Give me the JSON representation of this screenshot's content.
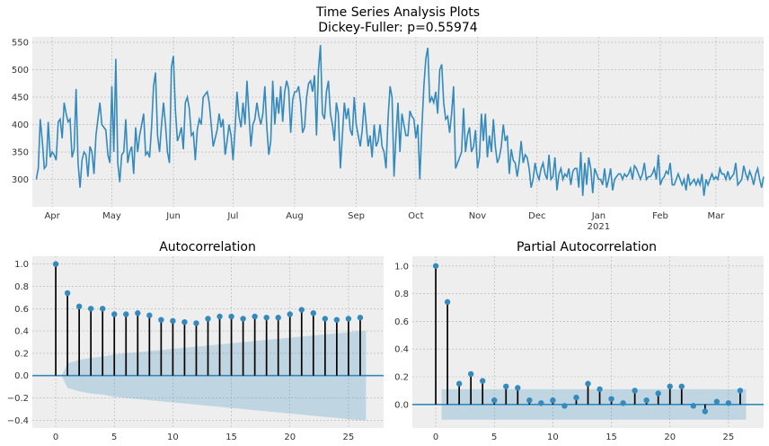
{
  "chart_data": [
    {
      "type": "line",
      "title": "Time Series Analysis Plots",
      "subtitle": "Dickey-Fuller: p=0.55974",
      "xlabel": "",
      "ylabel": "",
      "ylim": [
        250,
        560
      ],
      "yticks": [
        300,
        350,
        400,
        450,
        500,
        550
      ],
      "xticks": [
        {
          "day": 8,
          "label": "Apr",
          "sub": ""
        },
        {
          "day": 38,
          "label": "May",
          "sub": ""
        },
        {
          "day": 69,
          "label": "Jun",
          "sub": ""
        },
        {
          "day": 99,
          "label": "Jul",
          "sub": ""
        },
        {
          "day": 130,
          "label": "Aug",
          "sub": ""
        },
        {
          "day": 161,
          "label": "Sep",
          "sub": ""
        },
        {
          "day": 191,
          "label": "Oct",
          "sub": ""
        },
        {
          "day": 222,
          "label": "Nov",
          "sub": ""
        },
        {
          "day": 252,
          "label": "Dec",
          "sub": ""
        },
        {
          "day": 283,
          "label": "Jan",
          "sub": "2021"
        },
        {
          "day": 314,
          "label": "Feb",
          "sub": ""
        },
        {
          "day": 342,
          "label": "Mar",
          "sub": ""
        }
      ],
      "xlim": [
        -2,
        366
      ],
      "color": "#348ABD",
      "grid": true,
      "series": [
        {
          "values": [
            300,
            320,
            410,
            370,
            320,
            325,
            405,
            340,
            350,
            345,
            335,
            405,
            410,
            375,
            440,
            420,
            405,
            410,
            340,
            355,
            465,
            330,
            285,
            335,
            350,
            345,
            305,
            360,
            350,
            310,
            380,
            410,
            440,
            400,
            395,
            390,
            345,
            330,
            470,
            350,
            520,
            330,
            295,
            345,
            350,
            410,
            330,
            350,
            360,
            310,
            395,
            350,
            380,
            400,
            420,
            345,
            350,
            340,
            395,
            470,
            495,
            380,
            350,
            400,
            440,
            400,
            350,
            330,
            505,
            525,
            425,
            370,
            380,
            395,
            355,
            440,
            450,
            430,
            380,
            385,
            335,
            390,
            410,
            400,
            450,
            455,
            460,
            440,
            400,
            360,
            375,
            390,
            420,
            395,
            410,
            345,
            370,
            400,
            380,
            335,
            390,
            460,
            415,
            395,
            440,
            400,
            480,
            420,
            360,
            400,
            410,
            440,
            415,
            400,
            420,
            470,
            395,
            345,
            370,
            480,
            400,
            450,
            420,
            470,
            405,
            460,
            480,
            465,
            385,
            445,
            460,
            460,
            470,
            440,
            385,
            395,
            450,
            475,
            480,
            460,
            490,
            380,
            500,
            545,
            420,
            410,
            460,
            480,
            420,
            400,
            370,
            440,
            420,
            320,
            380,
            440,
            410,
            430,
            390,
            380,
            450,
            400,
            380,
            360,
            390,
            440,
            400,
            360,
            380,
            340,
            400,
            360,
            370,
            400,
            360,
            350,
            320,
            410,
            470,
            450,
            305,
            380,
            440,
            350,
            420,
            400,
            380,
            380,
            425,
            415,
            410,
            375,
            400,
            300,
            390,
            470,
            520,
            540,
            440,
            450,
            440,
            460,
            420,
            500,
            510,
            440,
            410,
            415,
            385,
            420,
            470,
            320,
            330,
            340,
            350,
            430,
            350,
            380,
            395,
            350,
            360,
            390,
            320,
            340,
            420,
            370,
            420,
            340,
            380,
            350,
            410,
            360,
            330,
            340,
            360,
            400,
            370,
            380,
            310,
            355,
            335,
            330,
            305,
            330,
            370,
            330,
            345,
            340,
            320,
            285,
            300,
            330,
            310,
            300,
            320,
            330,
            310,
            300,
            345,
            300,
            305,
            340,
            280,
            310,
            320,
            300,
            310,
            305,
            320,
            290,
            315,
            320,
            320,
            285,
            350,
            270,
            330,
            290,
            340,
            320,
            275,
            320,
            310,
            300,
            300,
            290,
            320,
            285,
            300,
            320,
            280,
            300,
            305,
            310,
            310,
            300,
            310,
            305,
            310,
            320,
            300,
            325,
            320,
            310,
            300,
            310,
            330,
            300,
            305,
            305,
            310,
            320,
            300,
            345,
            290,
            300,
            305,
            315,
            310,
            330,
            290,
            290,
            300,
            310,
            300,
            290,
            300,
            280,
            310,
            290,
            295,
            300,
            290,
            300,
            290,
            310,
            270,
            300,
            290,
            300,
            310,
            300,
            305,
            300,
            320,
            310,
            310,
            300,
            315,
            300,
            305,
            310,
            330,
            290,
            295,
            300,
            325,
            310,
            300,
            315,
            305,
            290,
            310,
            320,
            300,
            285,
            305
          ]
        }
      ]
    },
    {
      "type": "stem",
      "title": "Autocorrelation",
      "xlim": [
        -2,
        28
      ],
      "ylim": [
        -0.47,
        1.07
      ],
      "xticks": [
        0,
        5,
        10,
        15,
        20,
        25
      ],
      "yticks": [
        -0.4,
        -0.2,
        0.0,
        0.2,
        0.4,
        0.6,
        0.8,
        1.0
      ],
      "lags": [
        0,
        1,
        2,
        3,
        4,
        5,
        6,
        7,
        8,
        9,
        10,
        11,
        12,
        13,
        14,
        15,
        16,
        17,
        18,
        19,
        20,
        21,
        22,
        23,
        24,
        25,
        26
      ],
      "values": [
        1.0,
        0.74,
        0.62,
        0.6,
        0.6,
        0.55,
        0.55,
        0.56,
        0.54,
        0.5,
        0.49,
        0.48,
        0.47,
        0.51,
        0.53,
        0.53,
        0.51,
        0.53,
        0.52,
        0.52,
        0.55,
        0.59,
        0.56,
        0.51,
        0.5,
        0.51,
        0.52
      ],
      "confint_upper": [
        0.0,
        0.11,
        0.14,
        0.16,
        0.17,
        0.19,
        0.2,
        0.21,
        0.22,
        0.23,
        0.24,
        0.25,
        0.26,
        0.27,
        0.28,
        0.29,
        0.3,
        0.31,
        0.32,
        0.33,
        0.34,
        0.35,
        0.36,
        0.37,
        0.38,
        0.39,
        0.4
      ],
      "color": "#348ABD"
    },
    {
      "type": "stem",
      "title": "Partial Autocorrelation",
      "xlim": [
        -2,
        28
      ],
      "ylim": [
        -0.17,
        1.07
      ],
      "xticks": [
        0,
        5,
        10,
        15,
        20,
        25
      ],
      "yticks": [
        0.0,
        0.2,
        0.4,
        0.6,
        0.8,
        1.0
      ],
      "lags": [
        0,
        1,
        2,
        3,
        4,
        5,
        6,
        7,
        8,
        9,
        10,
        11,
        12,
        13,
        14,
        15,
        16,
        17,
        18,
        19,
        20,
        21,
        22,
        23,
        24,
        25,
        26
      ],
      "values": [
        1.0,
        0.74,
        0.15,
        0.22,
        0.17,
        0.03,
        0.13,
        0.12,
        0.03,
        0.01,
        0.03,
        -0.01,
        0.05,
        0.15,
        0.11,
        0.04,
        0.01,
        0.1,
        0.03,
        0.08,
        0.13,
        0.13,
        -0.01,
        -0.05,
        0.02,
        0.01,
        0.1
      ],
      "confint": 0.11,
      "color": "#348ABD"
    }
  ]
}
